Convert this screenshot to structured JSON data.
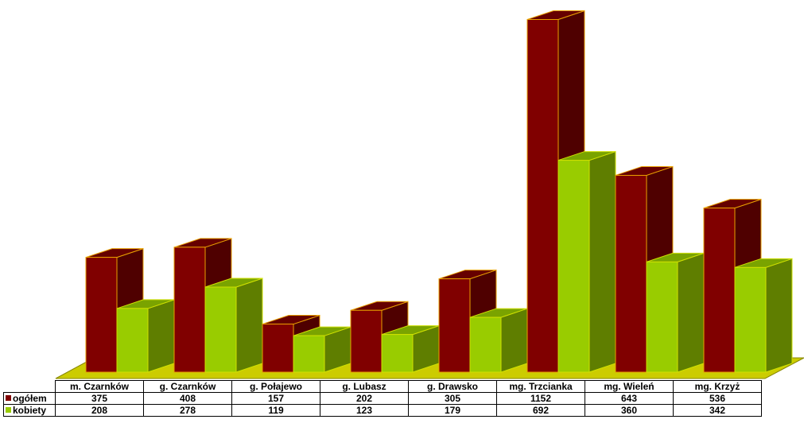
{
  "chart_data": {
    "type": "bar",
    "style": "3d-clustered",
    "title": "",
    "xlabel": "",
    "ylabel": "",
    "ylim": [
      0,
      1200
    ],
    "grid": false,
    "legend": "data-table-left",
    "categories": [
      "m. Czarnków",
      "g. Czarnków",
      "g. Połajewo",
      "g. Lubasz",
      "g. Drawsko",
      "mg. Trzcianka",
      "mg. Wieleń",
      "mg. Krzyż"
    ],
    "series": [
      {
        "name": "ogółem",
        "color": "#800000",
        "values": [
          375,
          408,
          157,
          202,
          305,
          1152,
          643,
          536
        ]
      },
      {
        "name": "kobiety",
        "color": "#99cc00",
        "values": [
          208,
          278,
          119,
          123,
          179,
          692,
          360,
          342
        ]
      }
    ],
    "floor_color": "#cccc00"
  }
}
